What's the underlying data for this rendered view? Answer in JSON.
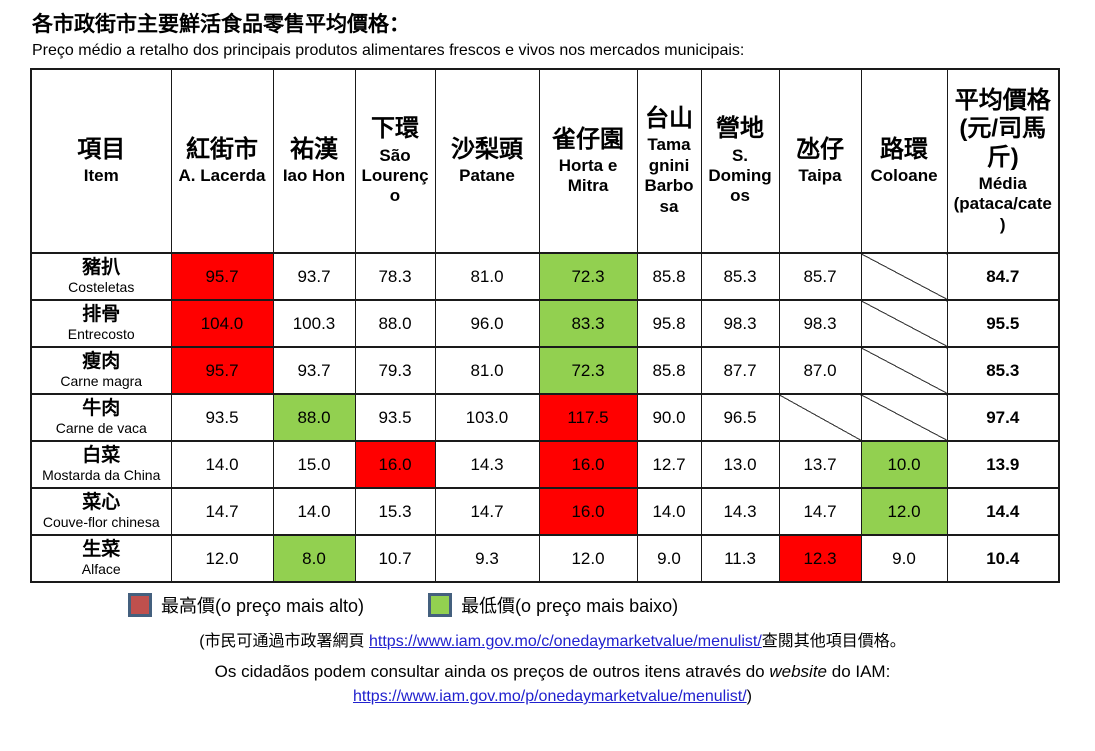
{
  "page": {
    "title_zh": "各市政街市主要鮮活食品零售平均價格：",
    "title_pt": "Preço médio a retalho dos principais produtos alimentares frescos e vivos nos mercados municipais:"
  },
  "colors": {
    "highlight_high": "#FF0000",
    "highlight_low": "#92D050",
    "legend_high_swatch": "#C0504D",
    "legend_low_swatch": "#92D050",
    "legend_swatch_border": "#44607E",
    "link_blue": "#2121CE"
  },
  "table": {
    "columns": [
      {
        "zh": "項目",
        "latin": "Item"
      },
      {
        "zh": "紅街市",
        "latin": "A. Lacerda"
      },
      {
        "zh": "祐漢",
        "latin": "Iao Hon"
      },
      {
        "zh": "下環",
        "latin": "São Lourenço"
      },
      {
        "zh": "沙梨頭",
        "latin": "Patane"
      },
      {
        "zh": "雀仔園",
        "latin": "Horta e Mitra"
      },
      {
        "zh": "台山",
        "latin": "Tamagnini Barbosa"
      },
      {
        "zh": "營地",
        "latin": "S. Domingos"
      },
      {
        "zh": "氹仔",
        "latin": "Taipa"
      },
      {
        "zh": "路環",
        "latin": "Coloane"
      },
      {
        "zh": "平均價格(元/司馬斤)",
        "latin": "Média (pataca/cate)"
      }
    ],
    "rows": [
      {
        "item_zh": "豬扒",
        "item_pt": "Costeletas",
        "cells": [
          {
            "v": "95.7",
            "hl": "high"
          },
          {
            "v": "93.7"
          },
          {
            "v": "78.3"
          },
          {
            "v": "81.0"
          },
          {
            "v": "72.3",
            "hl": "low"
          },
          {
            "v": "85.8"
          },
          {
            "v": "85.3"
          },
          {
            "v": "85.7"
          },
          {
            "na": true
          }
        ],
        "media": "84.7"
      },
      {
        "item_zh": "排骨",
        "item_pt": "Entrecosto",
        "cells": [
          {
            "v": "104.0",
            "hl": "high"
          },
          {
            "v": "100.3"
          },
          {
            "v": "88.0"
          },
          {
            "v": "96.0"
          },
          {
            "v": "83.3",
            "hl": "low"
          },
          {
            "v": "95.8"
          },
          {
            "v": "98.3"
          },
          {
            "v": "98.3"
          },
          {
            "na": true
          }
        ],
        "media": "95.5"
      },
      {
        "item_zh": "瘦肉",
        "item_pt": "Carne magra",
        "cells": [
          {
            "v": "95.7",
            "hl": "high"
          },
          {
            "v": "93.7"
          },
          {
            "v": "79.3"
          },
          {
            "v": "81.0"
          },
          {
            "v": "72.3",
            "hl": "low"
          },
          {
            "v": "85.8"
          },
          {
            "v": "87.7"
          },
          {
            "v": "87.0"
          },
          {
            "na": true
          }
        ],
        "media": "85.3"
      },
      {
        "item_zh": "牛肉",
        "item_pt": "Carne de vaca",
        "cells": [
          {
            "v": "93.5"
          },
          {
            "v": "88.0",
            "hl": "low"
          },
          {
            "v": "93.5"
          },
          {
            "v": "103.0"
          },
          {
            "v": "117.5",
            "hl": "high"
          },
          {
            "v": "90.0"
          },
          {
            "v": "96.5"
          },
          {
            "na": true
          },
          {
            "na": true
          }
        ],
        "media": "97.4"
      },
      {
        "item_zh": "白菜",
        "item_pt": "Mostarda da China",
        "cells": [
          {
            "v": "14.0"
          },
          {
            "v": "15.0"
          },
          {
            "v": "16.0",
            "hl": "high"
          },
          {
            "v": "14.3"
          },
          {
            "v": "16.0",
            "hl": "high"
          },
          {
            "v": "12.7"
          },
          {
            "v": "13.0"
          },
          {
            "v": "13.7"
          },
          {
            "v": "10.0",
            "hl": "low"
          }
        ],
        "media": "13.9"
      },
      {
        "item_zh": "菜心",
        "item_pt": "Couve-flor chinesa",
        "cells": [
          {
            "v": "14.7"
          },
          {
            "v": "14.0"
          },
          {
            "v": "15.3"
          },
          {
            "v": "14.7"
          },
          {
            "v": "16.0",
            "hl": "high"
          },
          {
            "v": "14.0"
          },
          {
            "v": "14.3"
          },
          {
            "v": "14.7"
          },
          {
            "v": "12.0",
            "hl": "low"
          }
        ],
        "media": "14.4"
      },
      {
        "item_zh": "生菜",
        "item_pt": "Alface",
        "cells": [
          {
            "v": "12.0"
          },
          {
            "v": "8.0",
            "hl": "low"
          },
          {
            "v": "10.7"
          },
          {
            "v": "9.3"
          },
          {
            "v": "12.0"
          },
          {
            "v": "9.0"
          },
          {
            "v": "11.3"
          },
          {
            "v": "12.3",
            "hl": "high"
          },
          {
            "v": "9.0"
          }
        ],
        "media": "10.4"
      }
    ]
  },
  "legend": {
    "high_label": "最高價(o preço mais alto)",
    "low_label": "最低價(o preço mais baixo)"
  },
  "footnotes": {
    "line1_prefix": "(市民可通過市政署網頁 ",
    "line1_link": "https://www.iam.gov.mo/c/onedaymarketvalue/menulist/",
    "line1_suffix": "查閱其他項目價格。",
    "line2_before": "Os cidadãos podem consultar ainda os preços de outros itens através do ",
    "line2_italic": "website",
    "line2_after": " do IAM:",
    "line3_link": "https://www.iam.gov.mo/p/onedaymarketvalue/menulist/",
    "line3_suffix": ")"
  }
}
